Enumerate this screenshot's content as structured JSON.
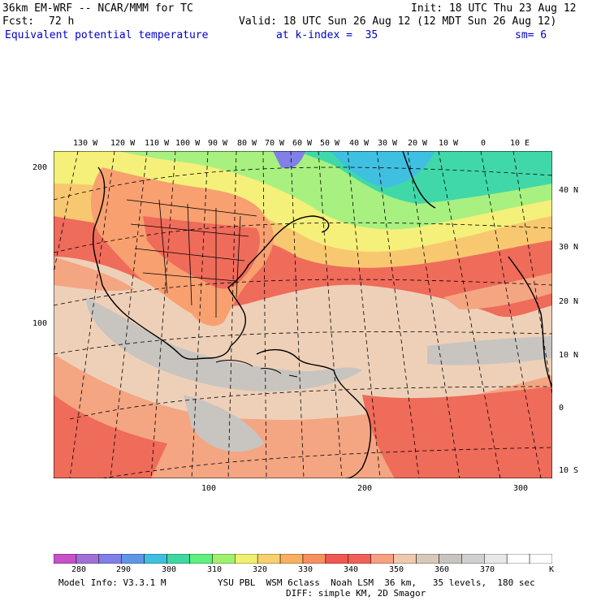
{
  "header": {
    "model": "36km EM-WRF -- NCAR/MMM for TC",
    "init": "Init: 18 UTC Thu 23 Aug 12",
    "fcst_label": "Fcst:",
    "fcst_value": "72 h",
    "valid": "Valid: 18 UTC Sun 26 Aug 12 (12 MDT Sun 26 Aug 12)",
    "field": "Equivalent potential temperature",
    "level": "at k-index =  35",
    "smooth": "sm= 6"
  },
  "lon_labels": [
    "130 W",
    "120 W",
    "110 W",
    "100 W",
    "90 W",
    "80 W",
    "70 W",
    "60 W",
    "50 W",
    "40 W",
    "30 W",
    "20 W",
    "10 W",
    "0",
    "10 E"
  ],
  "lat_labels": [
    "40 N",
    "30 N",
    "20 N",
    "10 N",
    "0",
    "10 S"
  ],
  "y_grid_labels": [
    "200",
    "100"
  ],
  "x_grid_labels": [
    "100",
    "200",
    "300"
  ],
  "colorbar": {
    "labels": [
      "280",
      "290",
      "300",
      "310",
      "320",
      "330",
      "340",
      "350",
      "360",
      "370"
    ],
    "unit": "K",
    "colors": [
      "#c850c8",
      "#a070d8",
      "#8080e8",
      "#6096e8",
      "#40c0e0",
      "#40d8a0",
      "#60f080",
      "#a0f070",
      "#f0f070",
      "#f8d070",
      "#f8b060",
      "#f89060",
      "#f05850",
      "#f06058",
      "#f8a080",
      "#f0c8b0",
      "#d8c8b8",
      "#c8c4c0",
      "#d0d0d0",
      "#e8e8e8",
      "#ffffff",
      "#ffffff"
    ]
  },
  "footer": {
    "model_info": "Model Info: V3.3.1 M",
    "physics": "YSU PBL  WSM 6class  Noah LSM  36 km,   35 levels,  180 sec",
    "diffusion": "DIFF: simple KM, 2D Smagor"
  }
}
